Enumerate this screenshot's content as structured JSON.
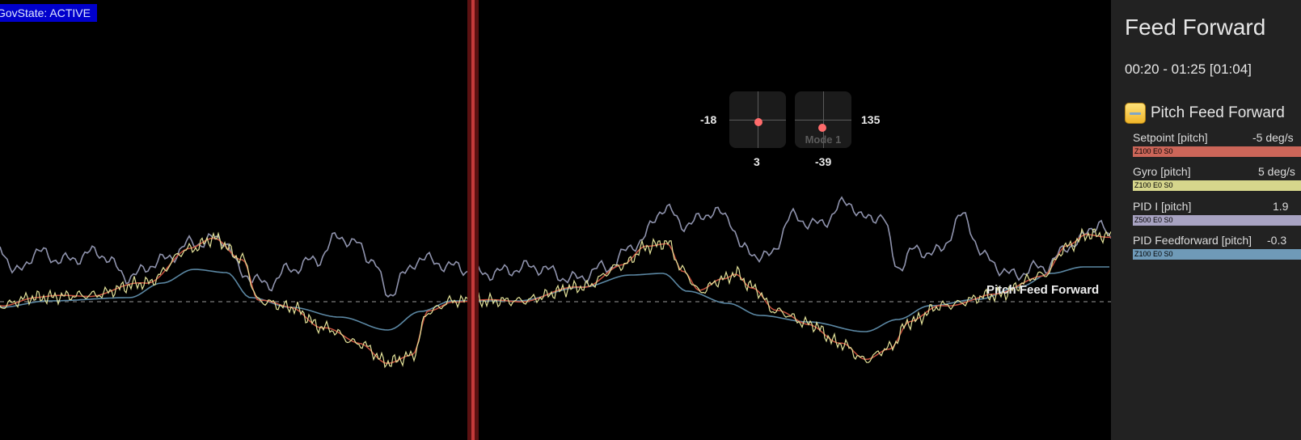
{
  "gov_state": "GovState: ACTIVE",
  "graph_label": "Pitch Feed Forward",
  "sticks": {
    "left": {
      "x_value": "-18",
      "y_value": "3"
    },
    "right": {
      "x_value": "135",
      "y_value": "-39",
      "mode_label": "Mode 1"
    }
  },
  "sidebar": {
    "title": "Feed Forward",
    "time_range": "00:20 - 01:25 [01:04]",
    "group": {
      "name": "Pitch Feed Forward",
      "fields": [
        {
          "name": "Setpoint [pitch]",
          "value": "-5 deg/s",
          "settings": "Z100 E0 S0",
          "color": "#cc6659"
        },
        {
          "name": "Gyro [pitch]",
          "value": "5 deg/s",
          "settings": "Z100 E0 S0",
          "color": "#d6d68c"
        },
        {
          "name": "PID I [pitch]",
          "value": "1.9",
          "settings": "Z500 E0 S0",
          "color": "#a8a3c2"
        },
        {
          "name": "PID Feedforward [pitch]",
          "value": "-0.3",
          "settings": "Z100 E0 S0",
          "color": "#6f9ab8"
        }
      ]
    }
  },
  "colors": {
    "setpoint": "#c9523f",
    "gyro": "#e4e39a",
    "pid_i": "#8f93ad",
    "feedforward": "#5b87a3",
    "cursor": "#8a1f1f",
    "zero_line": "#666666"
  }
}
